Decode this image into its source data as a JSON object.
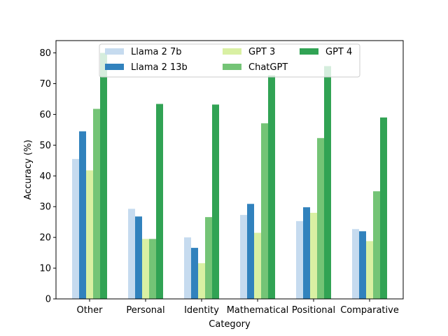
{
  "chart_data": {
    "type": "bar",
    "title": "",
    "xlabel": "Category",
    "ylabel": "Accuracy (%)",
    "ylim": [
      0,
      84
    ],
    "yticks": [
      0,
      10,
      20,
      30,
      40,
      50,
      60,
      70,
      80
    ],
    "grid": false,
    "legend_position": "top-center",
    "categories": [
      "Other",
      "Personal",
      "Identity",
      "Mathematical",
      "Positional",
      "Comparative"
    ],
    "series": [
      {
        "name": "Llama 2 7b",
        "color": "#c6dbef",
        "values": [
          45.5,
          29.3,
          20.0,
          27.3,
          25.3,
          22.7
        ]
      },
      {
        "name": "Llama 2 13b",
        "color": "#3182bd",
        "values": [
          54.5,
          26.8,
          16.6,
          30.9,
          29.8,
          22.0
        ]
      },
      {
        "name": "GPT 3",
        "color": "#d9f0a3",
        "values": [
          41.8,
          19.5,
          11.6,
          21.5,
          28.0,
          18.8
        ]
      },
      {
        "name": "ChatGPT",
        "color": "#74c476",
        "values": [
          61.8,
          19.5,
          26.6,
          57.1,
          52.3,
          35.0
        ]
      },
      {
        "name": "GPT 4",
        "color": "#31a354",
        "values": [
          80.0,
          63.4,
          63.2,
          72.7,
          75.7,
          59.0
        ]
      }
    ]
  }
}
